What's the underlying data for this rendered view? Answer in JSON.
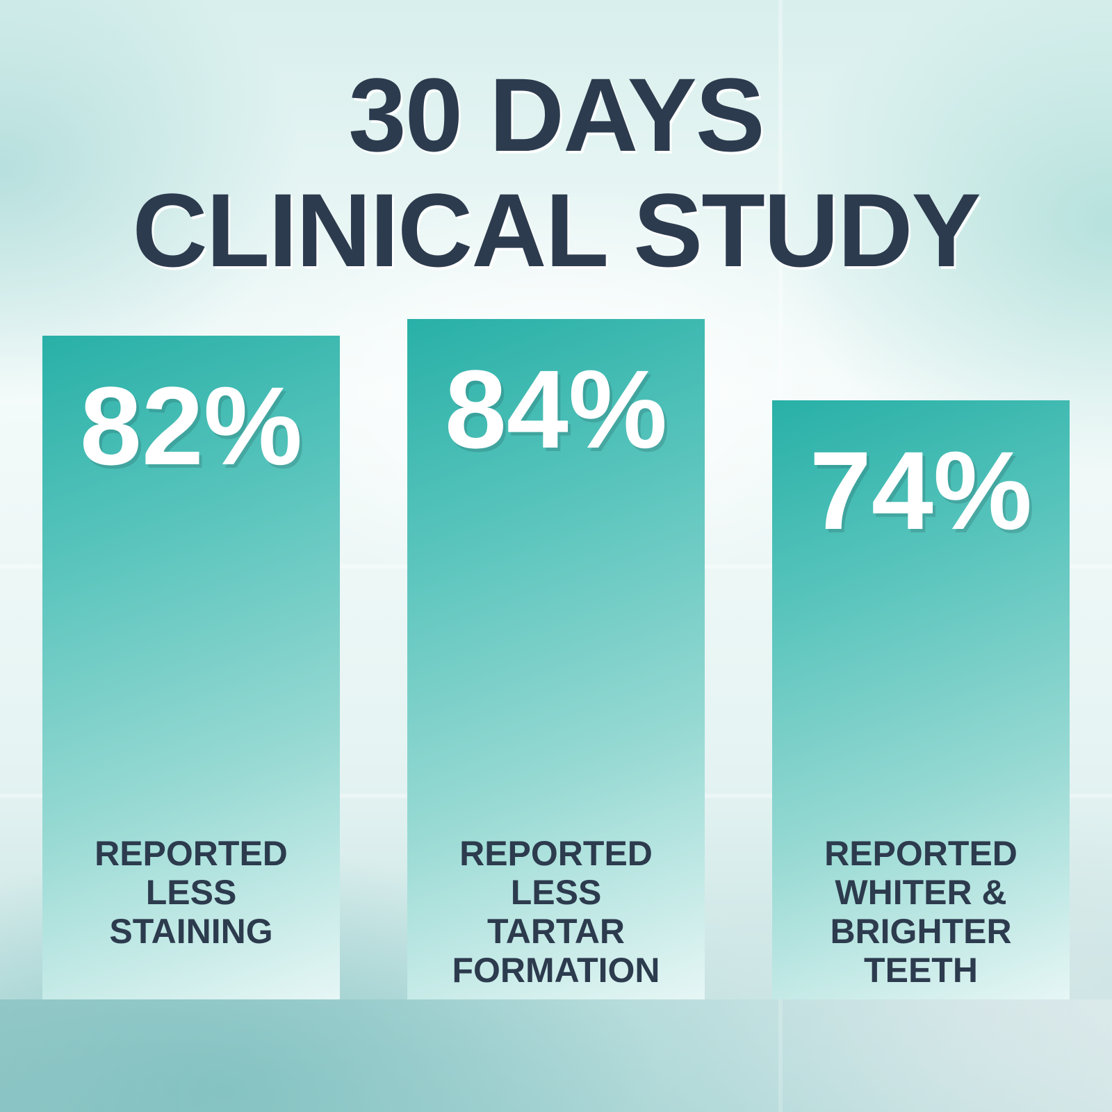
{
  "title": {
    "line1": "30 DAYS",
    "line2": "CLINICAL STUDY"
  },
  "chart_data": {
    "type": "bar",
    "categories": [
      "REPORTED LESS STAINING",
      "REPORTED LESS TARTAR FORMATION",
      "REPORTED WHITER & BRIGHTER TEETH"
    ],
    "label_lines": [
      [
        "REPORTED",
        "LESS",
        "STAINING"
      ],
      [
        "REPORTED",
        "LESS",
        "TARTAR",
        "FORMATION"
      ],
      [
        "REPORTED",
        "WHITER &",
        "BRIGHTER",
        "TEETH"
      ]
    ],
    "values": [
      82,
      84,
      74
    ],
    "value_labels": [
      "82%",
      "84%",
      "74%"
    ],
    "ylim": [
      0,
      100
    ],
    "xlabel": "",
    "ylabel": "",
    "grid": false
  },
  "colors": {
    "bar_top": "#28b0a7",
    "bar_bottom": "#e6f6f5",
    "title": "#2d3b4e",
    "label": "#2d3b4e",
    "value": "#ffffff"
  }
}
